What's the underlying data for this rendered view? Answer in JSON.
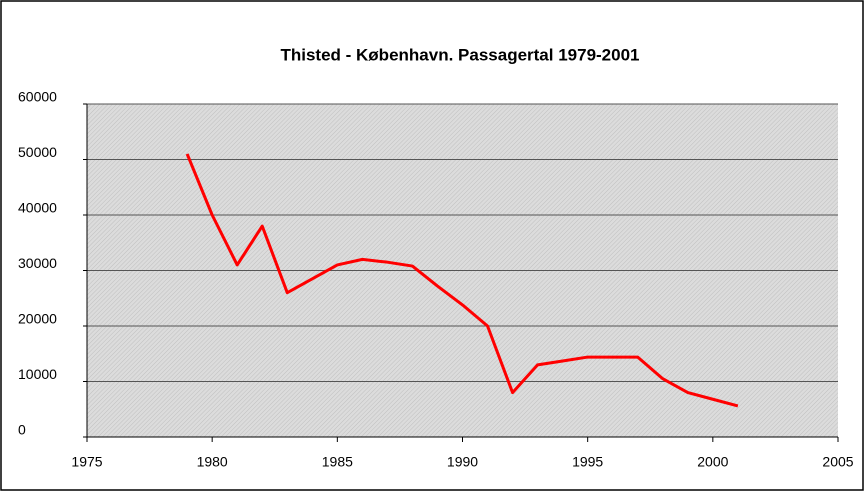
{
  "chart_data": {
    "type": "line",
    "title": "Thisted - København. Passagertal 1979-2001",
    "x": [
      1979,
      1980,
      1981,
      1982,
      1983,
      1984,
      1985,
      1986,
      1987,
      1988,
      1989,
      1990,
      1991,
      1992,
      1993,
      1994,
      1995,
      1996,
      1997,
      1998,
      1999,
      2000,
      2001
    ],
    "series": [
      {
        "name": "Passagertal",
        "color": "#ff0000",
        "values": [
          51000,
          40000,
          31000,
          38000,
          26000,
          28500,
          31000,
          32000,
          31500,
          30800,
          27200,
          23800,
          20000,
          8000,
          13000,
          13700,
          14400,
          14400,
          14400,
          10500,
          8000,
          6800,
          5600
        ]
      }
    ],
    "xlim": [
      1975,
      2005
    ],
    "xticks": [
      1975,
      1980,
      1985,
      1990,
      1995,
      2000,
      2005
    ],
    "ylim": [
      0,
      60000
    ],
    "yticks": [
      0,
      10000,
      20000,
      30000,
      40000,
      50000,
      60000
    ],
    "grid": true,
    "legend": false
  }
}
